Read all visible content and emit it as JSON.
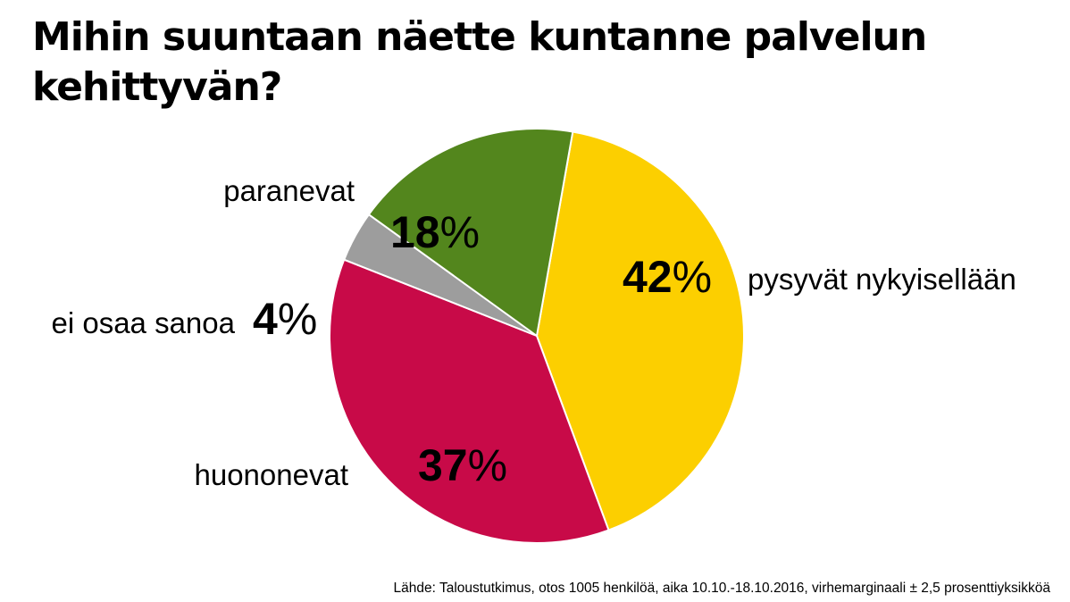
{
  "chart_data": {
    "type": "pie",
    "title": "Mihin suuntaan näette kuntanne palvelun kehittyvän?",
    "categories": [
      "pysyvät nykyisellään",
      "huononevat",
      "ei osaa sanoa",
      "paranevat"
    ],
    "values": [
      42,
      37,
      4,
      18
    ],
    "unit": "%",
    "value_labels": [
      "42",
      "37",
      "4",
      "18"
    ],
    "colors": [
      "#FCCF00",
      "#C80A48",
      "#9D9D9D",
      "#53861D"
    ],
    "start_angle_deg": 10,
    "direction": "clockwise"
  },
  "source": "Lähde: Taloustutkimus, otos 1005 henkilöä, aika 10.10.-18.10.2016, virhemarginaali ± 2,5 prosenttiyksikköä"
}
